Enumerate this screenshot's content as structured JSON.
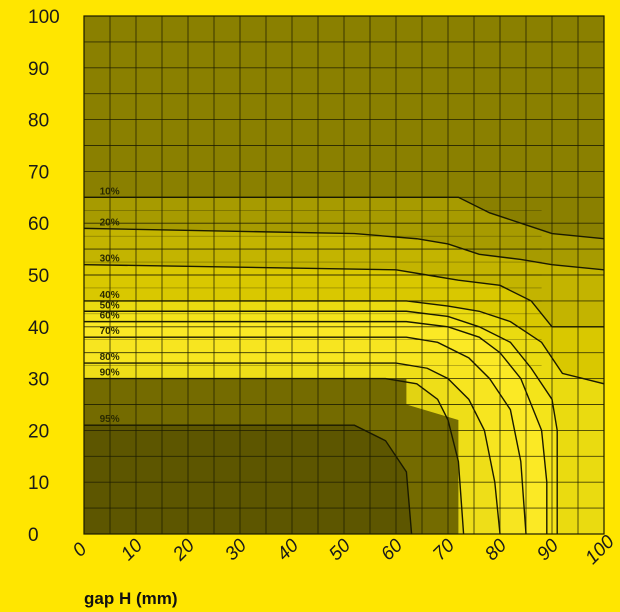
{
  "chart_data": {
    "type": "heatmap",
    "title": "",
    "xlabel": "gap H (mm)",
    "ylabel": "",
    "xlim": [
      0,
      100
    ],
    "ylim": [
      0,
      100
    ],
    "x_ticks": [
      "0",
      "10",
      "20",
      "30",
      "40",
      "50",
      "60",
      "70",
      "80",
      "90",
      "100"
    ],
    "y_ticks": [
      "0",
      "10",
      "20",
      "30",
      "40",
      "50",
      "60",
      "70",
      "80",
      "90",
      "100"
    ],
    "grid": true,
    "colors": {
      "background": "#ffe600",
      "outside": "#8a8000",
      "light": "#ffea1a",
      "grid": "#1a1a00",
      "high_zone": "#6e6500",
      "peak_zone": "#5c5500"
    },
    "contours": [
      {
        "label": "10%",
        "points": [
          [
            0,
            65
          ],
          [
            72,
            65
          ],
          [
            78,
            62
          ],
          [
            84,
            60
          ],
          [
            90,
            58
          ],
          [
            100,
            57
          ]
        ]
      },
      {
        "label": "20%",
        "points": [
          [
            0,
            59
          ],
          [
            52,
            58
          ],
          [
            64,
            57
          ],
          [
            70,
            56
          ],
          [
            76,
            54
          ],
          [
            84,
            53
          ],
          [
            90,
            52
          ],
          [
            100,
            51
          ]
        ]
      },
      {
        "label": "30%",
        "points": [
          [
            0,
            52
          ],
          [
            60,
            51
          ],
          [
            66,
            50
          ],
          [
            72,
            49
          ],
          [
            80,
            48
          ],
          [
            86,
            45
          ],
          [
            90,
            40
          ],
          [
            96,
            40
          ],
          [
            100,
            40
          ]
        ]
      },
      {
        "label": "40%",
        "points": [
          [
            0,
            45
          ],
          [
            62,
            45
          ],
          [
            70,
            44
          ],
          [
            76,
            43
          ],
          [
            82,
            41
          ],
          [
            88,
            37
          ],
          [
            92,
            31
          ],
          [
            96,
            30
          ],
          [
            100,
            29
          ]
        ]
      },
      {
        "label": "50%",
        "points": [
          [
            0,
            43
          ],
          [
            62,
            43
          ],
          [
            70,
            42
          ],
          [
            76,
            40
          ],
          [
            82,
            37
          ],
          [
            86,
            32
          ],
          [
            90,
            26
          ],
          [
            91,
            20
          ],
          [
            91,
            10
          ],
          [
            91,
            0
          ]
        ]
      },
      {
        "label": "60%",
        "points": [
          [
            0,
            41
          ],
          [
            62,
            41
          ],
          [
            70,
            40
          ],
          [
            76,
            38
          ],
          [
            80,
            35
          ],
          [
            84,
            30
          ],
          [
            88,
            20
          ],
          [
            89,
            10
          ],
          [
            89,
            0
          ]
        ]
      },
      {
        "label": "70%",
        "points": [
          [
            0,
            38
          ],
          [
            62,
            38
          ],
          [
            68,
            37
          ],
          [
            74,
            34
          ],
          [
            78,
            30
          ],
          [
            82,
            24
          ],
          [
            84,
            14
          ],
          [
            85,
            0
          ]
        ]
      },
      {
        "label": "80%",
        "points": [
          [
            0,
            33
          ],
          [
            60,
            33
          ],
          [
            66,
            32
          ],
          [
            70,
            30
          ],
          [
            74,
            26
          ],
          [
            77,
            20
          ],
          [
            79,
            10
          ],
          [
            80,
            0
          ]
        ]
      },
      {
        "label": "90%",
        "points": [
          [
            0,
            30
          ],
          [
            58,
            30
          ],
          [
            64,
            29
          ],
          [
            68,
            26
          ],
          [
            70,
            22
          ],
          [
            72,
            14
          ],
          [
            73,
            0
          ]
        ]
      },
      {
        "label": "95%",
        "points": [
          [
            0,
            21
          ],
          [
            52,
            21
          ],
          [
            58,
            18
          ],
          [
            62,
            12
          ],
          [
            63,
            0
          ]
        ]
      }
    ],
    "zones": [
      {
        "name": "90% zone",
        "points": [
          [
            0,
            0
          ],
          [
            0,
            30
          ],
          [
            62,
            30
          ],
          [
            62,
            25
          ],
          [
            72,
            22
          ],
          [
            72,
            0
          ]
        ]
      },
      {
        "name": "95% zone",
        "points": [
          [
            0,
            0
          ],
          [
            0,
            21
          ],
          [
            52,
            21
          ],
          [
            58,
            18
          ],
          [
            62,
            12
          ],
          [
            63,
            0
          ]
        ]
      }
    ]
  }
}
